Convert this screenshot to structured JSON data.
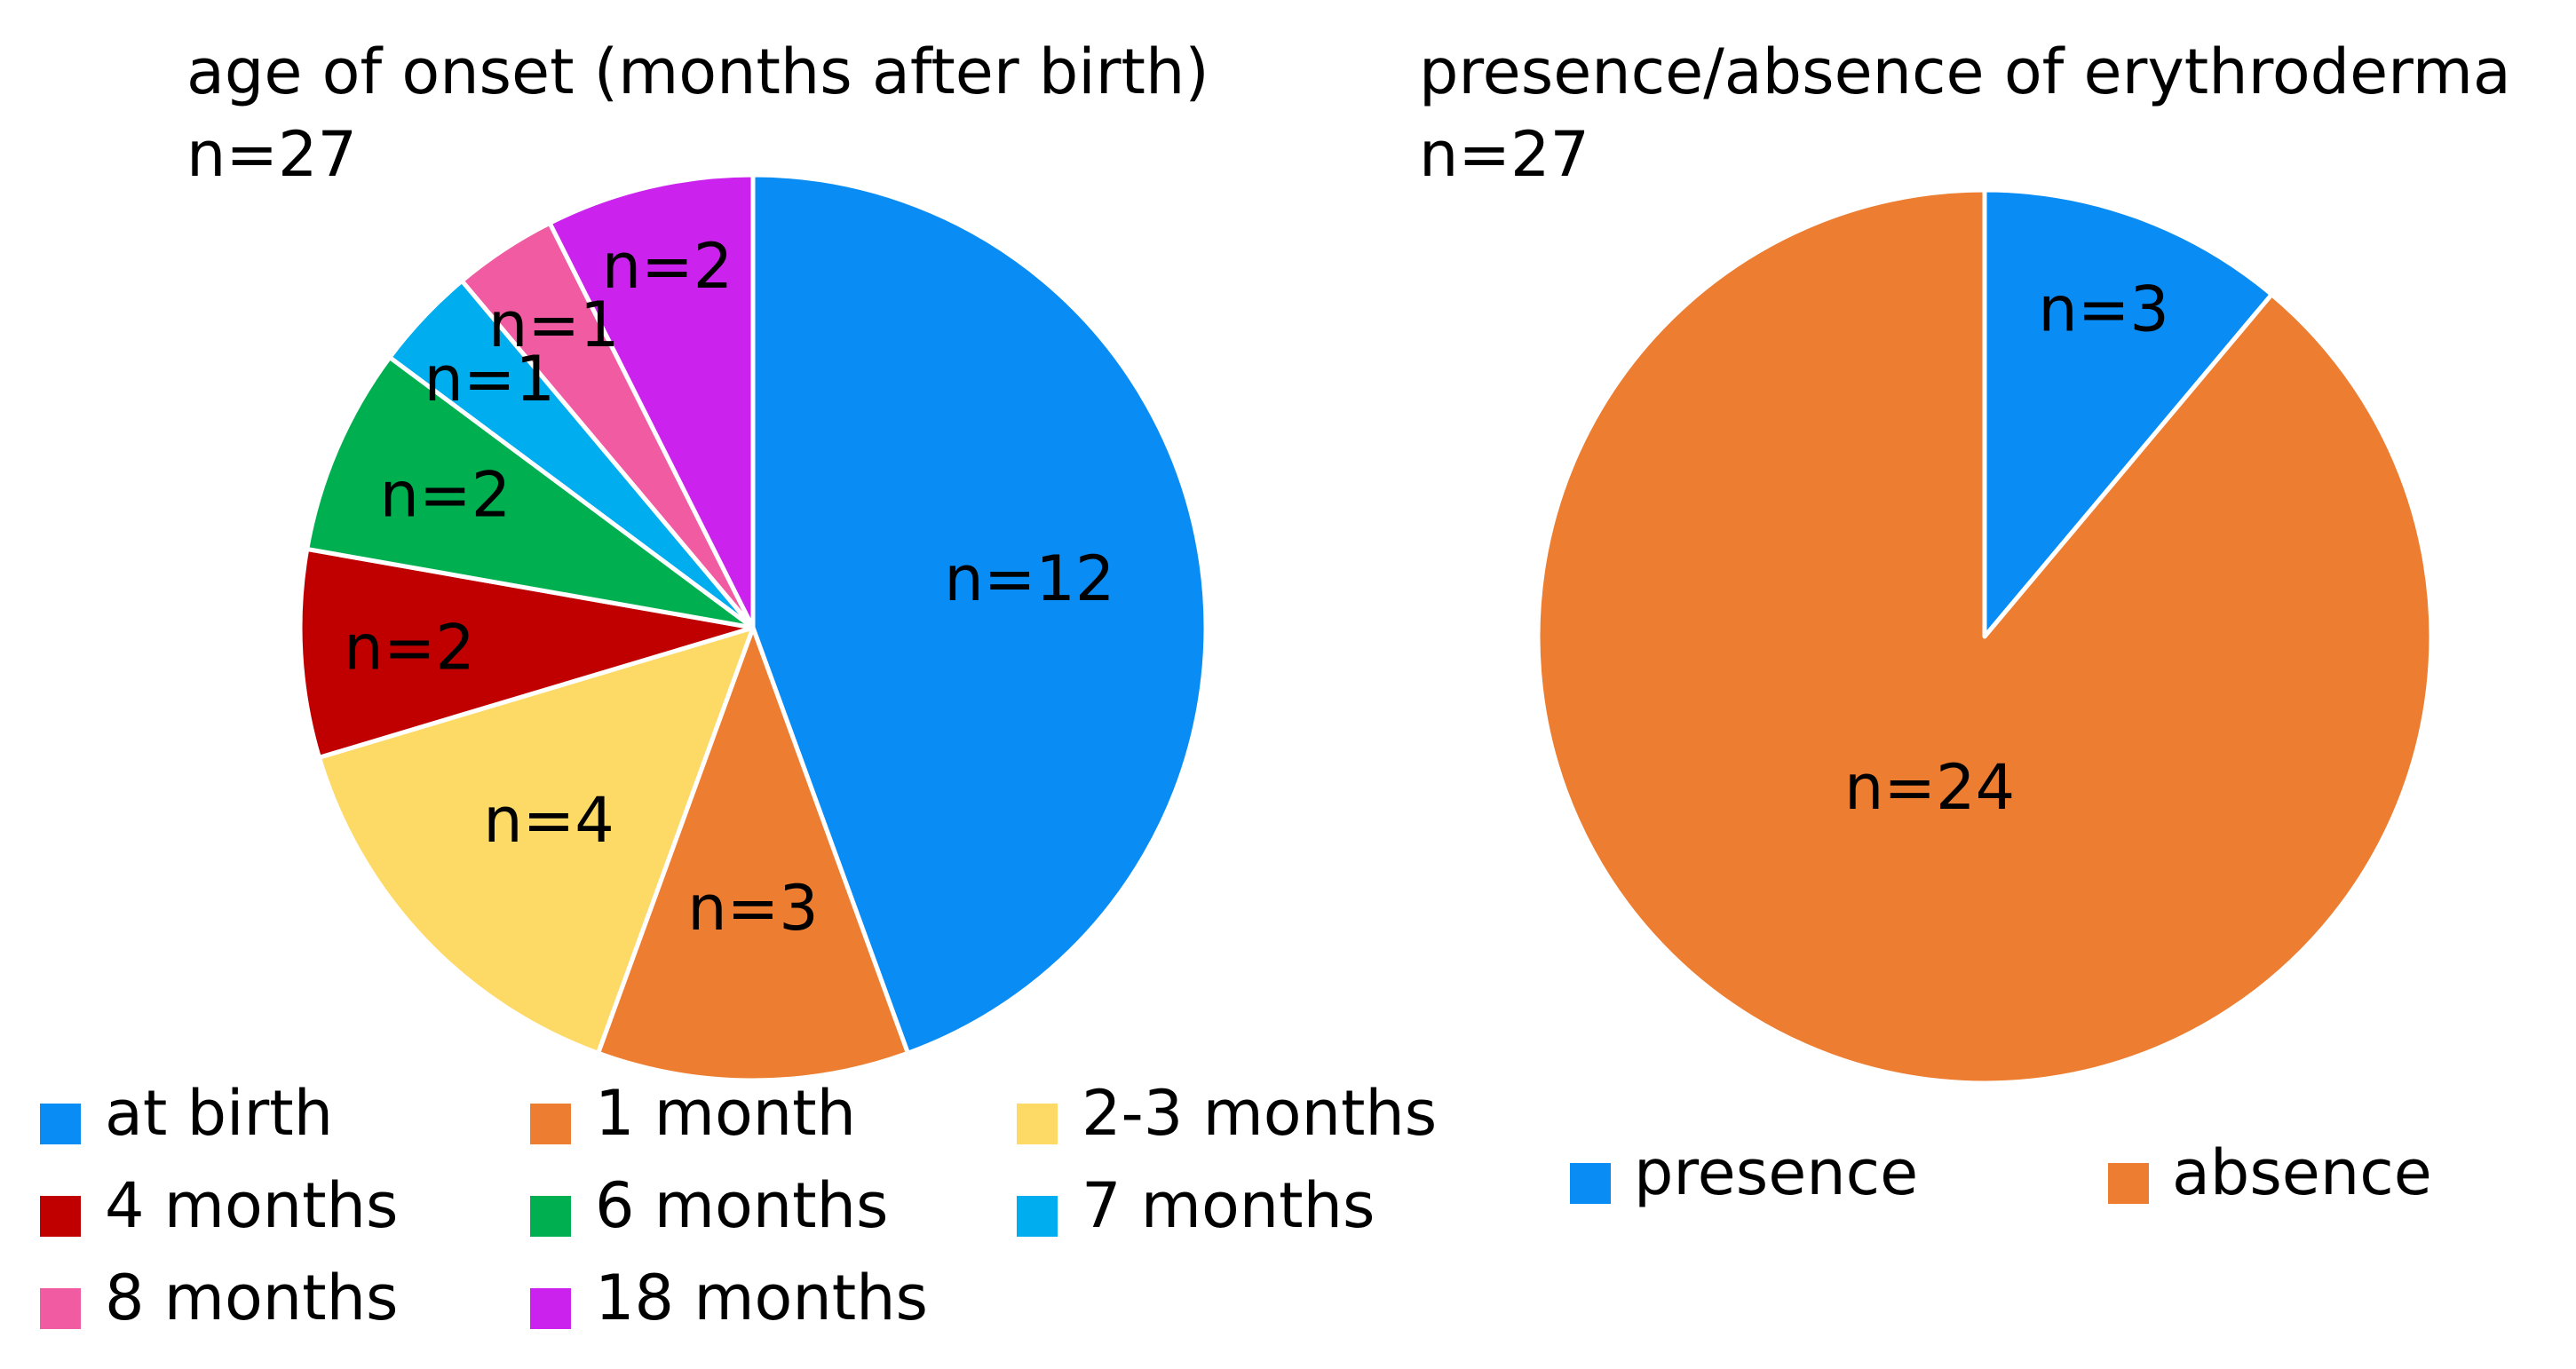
{
  "chart_data": [
    {
      "type": "pie",
      "title": "age of onset (months after birth)",
      "subtitle": "n=27",
      "total": 27,
      "slices": [
        {
          "label": "at birth",
          "value": 12,
          "data_label": "n=12",
          "color": "#0A8CF5"
        },
        {
          "label": "1 month",
          "value": 3,
          "data_label": "n=3",
          "color": "#EC7D31"
        },
        {
          "label": "2-3 months",
          "value": 4,
          "data_label": "n=4",
          "color": "#FDD966"
        },
        {
          "label": "4 months",
          "value": 2,
          "data_label": "n=2",
          "color": "#C00000"
        },
        {
          "label": "6 months",
          "value": 2,
          "data_label": "n=2",
          "color": "#00B050"
        },
        {
          "label": "7 months",
          "value": 1,
          "data_label": "n=1",
          "color": "#00ADEF"
        },
        {
          "label": "8 months",
          "value": 1,
          "data_label": "n=1",
          "color": "#F05BA1"
        },
        {
          "label": "18 months",
          "value": 2,
          "data_label": "n=2",
          "color": "#CC22EE"
        }
      ],
      "legend_position": "bottom",
      "start": "12 o'clock",
      "direction": "clockwise"
    },
    {
      "type": "pie",
      "title": "presence/absence of erythroderma",
      "subtitle": "n=27",
      "total": 27,
      "slices": [
        {
          "label": "presence",
          "value": 3,
          "data_label": "n=3",
          "color": "#0A8CF5"
        },
        {
          "label": "absence",
          "value": 24,
          "data_label": "n=24",
          "color": "#EC7D31"
        }
      ],
      "legend_position": "bottom",
      "start": "12 o'clock",
      "direction": "clockwise"
    }
  ]
}
